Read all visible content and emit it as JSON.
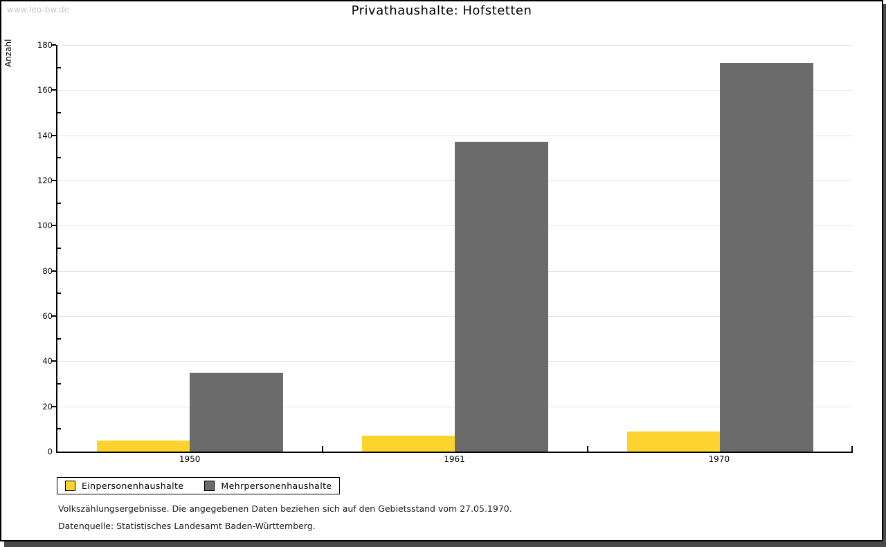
{
  "watermark": "www.leo-bw.de",
  "title": "Privathaushalte: Hofstetten",
  "chart_data": {
    "type": "bar",
    "title": "Privathaushalte: Hofstetten",
    "xlabel": "",
    "ylabel": "Anzahl",
    "categories": [
      "1950",
      "1961",
      "1970"
    ],
    "series": [
      {
        "name": "Einpersonenhaushalte",
        "color": "#fcd42d",
        "values": [
          5,
          7,
          9
        ]
      },
      {
        "name": "Mehrpersonenhaushalte",
        "color": "#6b6b6b",
        "values": [
          35,
          137,
          172
        ]
      }
    ],
    "ylim": [
      0,
      180
    ],
    "ytick_step": 20,
    "yminor_step": 10,
    "grid": "horizontal-major-lines",
    "legend_position": "bottom-left"
  },
  "footnotes": [
    "Volkszählungsergebnisse. Die angegebenen Daten beziehen sich auf den Gebietsstand vom 27.05.1970.",
    "Datenquelle: Statistisches Landesamt Baden-Württemberg."
  ],
  "colors": {
    "gridline": "#e3e3e3",
    "axis": "#000000",
    "watermark": "#c8c8c8",
    "shadow": "#4a4a4a"
  }
}
